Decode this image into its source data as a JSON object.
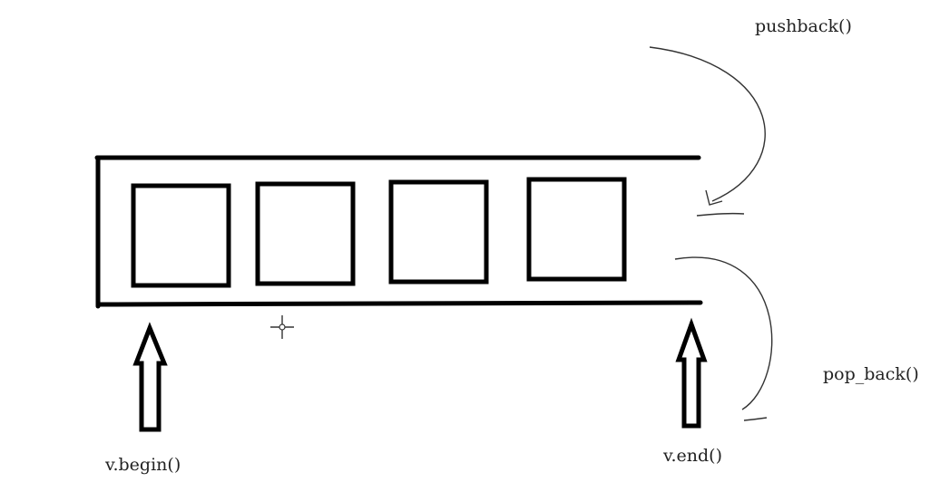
{
  "labels": {
    "pushback": "pushback()",
    "pop_back": "pop_back()",
    "begin": "v.begin()",
    "end": "v.end()"
  },
  "elements": {
    "element_count": 4
  },
  "colors": {
    "background": "#ffffff",
    "ink": "#000000",
    "curve": "#333333",
    "text": "#222222"
  },
  "icons": {
    "cursor": "crosshair-cursor-icon",
    "begin_arrow": "up-arrow-icon",
    "end_arrow": "up-arrow-icon"
  }
}
